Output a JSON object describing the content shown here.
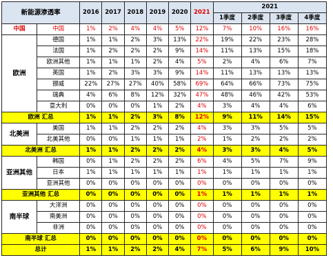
{
  "header": {
    "corner": "新能源渗透率",
    "years": [
      "2016",
      "2017",
      "2018",
      "2019",
      "2020",
      "2021"
    ],
    "year_2021_group": "2021",
    "quarters": [
      "1季度",
      "2季度",
      "3季度",
      "4季度"
    ]
  },
  "china": {
    "region": "中国",
    "country": "中国",
    "values": [
      "1%",
      "2%",
      "4%",
      "4%",
      "5%",
      "12%",
      "7%",
      "10%",
      "16%",
      "16%"
    ]
  },
  "europe": {
    "region": "欧洲",
    "rows": [
      {
        "country": "德国",
        "values": [
          "1%",
          "1%",
          "2%",
          "3%",
          "13%",
          "22%",
          "19%",
          "22%",
          "23%",
          "28%"
        ]
      },
      {
        "country": "法国",
        "values": [
          "1%",
          "2%",
          "2%",
          "2%",
          "9%",
          "14%",
          "11%",
          "13%",
          "15%",
          "18%"
        ]
      },
      {
        "country": "欧洲其他",
        "values": [
          "1%",
          "1%",
          "1%",
          "2%",
          "4%",
          "5%",
          "2%",
          "4%",
          "6%",
          "7%"
        ]
      },
      {
        "country": "英国",
        "values": [
          "1%",
          "2%",
          "3%",
          "3%",
          "9%",
          "14%",
          "11%",
          "13%",
          "13%",
          "13%"
        ]
      },
      {
        "country": "挪威",
        "values": [
          "22%",
          "27%",
          "27%",
          "40%",
          "58%",
          "69%",
          "64%",
          "66%",
          "73%",
          "75%"
        ]
      },
      {
        "country": "瑞典",
        "values": [
          "4%",
          "6%",
          "8%",
          "12%",
          "32%",
          "47%",
          "48%",
          "46%",
          "42%",
          "53%"
        ]
      },
      {
        "country": "意大利",
        "values": [
          "0%",
          "0%",
          "0%",
          "1%",
          "2%",
          "4%",
          "3%",
          "4%",
          "4%",
          "6%"
        ]
      }
    ],
    "total": {
      "label": "欧洲 汇总",
      "values": [
        "1%",
        "1%",
        "2%",
        "3%",
        "8%",
        "12%",
        "9%",
        "11%",
        "14%",
        "15%"
      ]
    }
  },
  "north_america": {
    "region": "北美洲",
    "rows": [
      {
        "country": "美国",
        "values": [
          "1%",
          "1%",
          "2%",
          "2%",
          "2%",
          "4%",
          "3%",
          "3%",
          "5%",
          "5%"
        ]
      },
      {
        "country": "北美其他",
        "values": [
          "0%",
          "0%",
          "1%",
          "1%",
          "1%",
          "2%",
          "1%",
          "2%",
          "2%",
          "2%"
        ]
      }
    ],
    "total": {
      "label": "北美洲 汇总",
      "values": [
        "1%",
        "1%",
        "2%",
        "2%",
        "2%",
        "4%",
        "3%",
        "3%",
        "4%",
        "5%"
      ]
    }
  },
  "asia_other": {
    "region": "亚洲其他",
    "rows": [
      {
        "country": "韩国",
        "values": [
          "0%",
          "1%",
          "2%",
          "2%",
          "2%",
          "6%",
          "4%",
          "5%",
          "7%",
          "9%"
        ]
      },
      {
        "country": "日本",
        "values": [
          "1%",
          "1%",
          "1%",
          "1%",
          "1%",
          "1%",
          "1%",
          "1%",
          "1%",
          "1%"
        ]
      },
      {
        "country": "亚洲其他",
        "values": [
          "0%",
          "0%",
          "0%",
          "0%",
          "0%",
          "0%",
          "0%",
          "0%",
          "0%",
          "0%"
        ]
      }
    ],
    "total": {
      "label": "亚洲其他 汇总",
      "values": [
        "0%",
        "0%",
        "0%",
        "0%",
        "0%",
        "1%",
        "1%",
        "1%",
        "1%",
        "1%"
      ]
    }
  },
  "southern": {
    "region": "南半球",
    "rows": [
      {
        "country": "大洋洲",
        "values": [
          "0%",
          "0%",
          "0%",
          "0%",
          "0%",
          "0%",
          "0%",
          "0%",
          "0%",
          "0%"
        ]
      },
      {
        "country": "南美洲",
        "values": [
          "0%",
          "0%",
          "0%",
          "0%",
          "0%",
          "0%",
          "0%",
          "0%",
          "0%",
          "0%"
        ]
      },
      {
        "country": "非洲",
        "values": [
          "0%",
          "0%",
          "0%",
          "0%",
          "0%",
          "0%",
          "0%",
          "0%",
          "0%",
          "0%"
        ]
      }
    ],
    "total": {
      "label": "南半球 汇总",
      "values": [
        "0%",
        "0%",
        "0%",
        "0%",
        "0%",
        "0%",
        "0%",
        "0%",
        "0%",
        "0%"
      ]
    }
  },
  "grand_total": {
    "label": "总计",
    "values": [
      "1%",
      "1%",
      "2%",
      "2%",
      "4%",
      "7%",
      "5%",
      "6%",
      "9%",
      "10%"
    ]
  }
}
